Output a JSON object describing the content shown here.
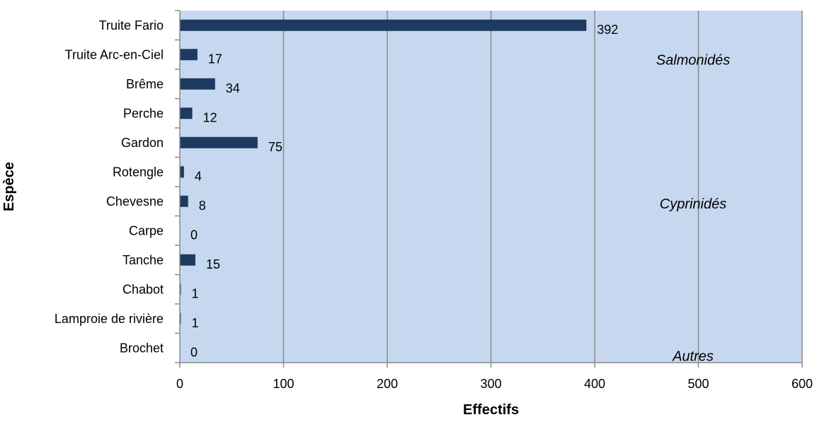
{
  "chart_data": {
    "type": "bar",
    "orientation": "horizontal",
    "categories": [
      "Truite Fario",
      "Truite Arc-en-Ciel",
      "Brême",
      "Perche",
      "Gardon",
      "Rotengle",
      "Chevesne",
      "Carpe",
      "Tanche",
      "Chabot",
      "Lamproie de rivière",
      "Brochet"
    ],
    "values": [
      392,
      17,
      34,
      12,
      75,
      4,
      8,
      0,
      15,
      1,
      1,
      0
    ],
    "xlabel": "Effectifs",
    "ylabel": "Espèce",
    "xlim": [
      0,
      600
    ],
    "xticks": [
      0,
      100,
      200,
      300,
      400,
      500,
      600
    ],
    "grid": "vertical",
    "legend": "none",
    "annotations": [
      {
        "text": "Salmonidés",
        "near": "Truite Arc-en-Ciel"
      },
      {
        "text": "Cyprinidés",
        "near": "Chevesne"
      },
      {
        "text": "Autres",
        "near": "Brochet"
      }
    ],
    "colors": {
      "bar": "#1f3a60",
      "plot_bg": "#c6d8ef",
      "grid": "#8a8a8a",
      "axis": "#8a8a8a"
    }
  }
}
